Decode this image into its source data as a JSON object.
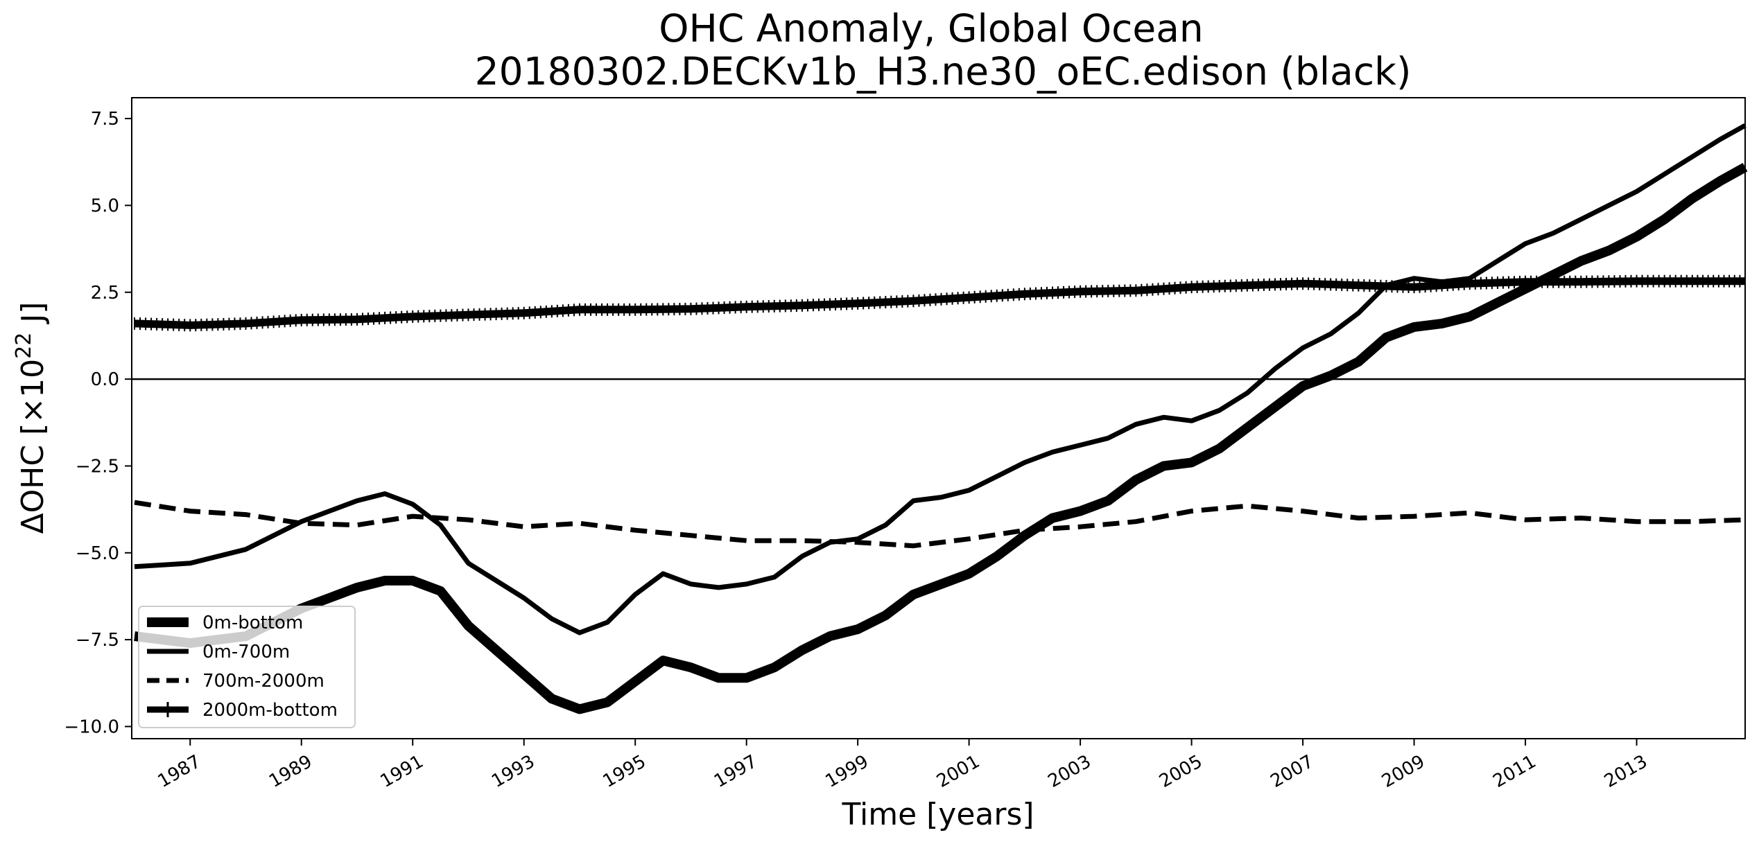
{
  "chart_data": {
    "type": "line",
    "title": "OHC Anomaly, Global Ocean",
    "subtitle": "20180302.DECKv1b_H3.ne30_oEC.edison (black)",
    "xlabel": "Time [years]",
    "ylabel_prefix": "ΔOHC [×10",
    "ylabel_exponent": "22",
    "ylabel_suffix": " J]",
    "xlim": [
      1985.95,
      2014.95
    ],
    "ylim": [
      -10.35,
      8.1
    ],
    "yticks": [
      7.5,
      5.0,
      2.5,
      0.0,
      -2.5,
      -5.0,
      -7.5,
      -10.0
    ],
    "ytick_labels": [
      "7.5",
      "5.0",
      "2.5",
      "0.0",
      "−2.5",
      "−5.0",
      "−7.5",
      "−10.0"
    ],
    "xticks": [
      1987,
      1989,
      1991,
      1993,
      1995,
      1997,
      1999,
      2001,
      2003,
      2005,
      2007,
      2009,
      2011,
      2013
    ],
    "xtick_labels": [
      "1987",
      "1989",
      "1991",
      "1993",
      "1995",
      "1997",
      "1999",
      "2001",
      "2003",
      "2005",
      "2007",
      "2009",
      "2011",
      "2013"
    ],
    "zero_line": 0.0,
    "legend_position": "lower-left",
    "series": [
      {
        "name": "0m-bottom",
        "style": "thick-solid",
        "x": [
          1986.0,
          1987.0,
          1988.0,
          1989.0,
          1989.5,
          1990.0,
          1990.5,
          1991.0,
          1991.5,
          1992.0,
          1992.5,
          1993.0,
          1993.5,
          1994.0,
          1994.5,
          1995.0,
          1995.5,
          1996.0,
          1996.5,
          1997.0,
          1997.5,
          1998.0,
          1998.5,
          1999.0,
          1999.5,
          2000.0,
          2000.5,
          2001.0,
          2001.5,
          2002.0,
          2002.5,
          2003.0,
          2003.5,
          2004.0,
          2004.5,
          2005.0,
          2005.5,
          2006.0,
          2006.5,
          2007.0,
          2007.5,
          2008.0,
          2008.5,
          2009.0,
          2009.5,
          2010.0,
          2010.5,
          2011.0,
          2011.5,
          2012.0,
          2012.5,
          2013.0,
          2013.5,
          2014.0,
          2014.5,
          2014.95
        ],
        "values": [
          -7.4,
          -7.6,
          -7.4,
          -6.6,
          -6.3,
          -6.0,
          -5.8,
          -5.8,
          -6.1,
          -7.1,
          -7.8,
          -8.5,
          -9.2,
          -9.5,
          -9.3,
          -8.7,
          -8.1,
          -8.3,
          -8.6,
          -8.6,
          -8.3,
          -7.8,
          -7.4,
          -7.2,
          -6.8,
          -6.2,
          -5.9,
          -5.6,
          -5.1,
          -4.5,
          -4.0,
          -3.8,
          -3.5,
          -2.9,
          -2.5,
          -2.4,
          -2.0,
          -1.4,
          -0.8,
          -0.2,
          0.1,
          0.5,
          1.2,
          1.5,
          1.6,
          1.8,
          2.2,
          2.6,
          3.0,
          3.4,
          3.7,
          4.1,
          4.6,
          5.2,
          5.7,
          6.1
        ]
      },
      {
        "name": "0m-700m",
        "style": "solid",
        "x": [
          1986.0,
          1987.0,
          1988.0,
          1989.0,
          1989.5,
          1990.0,
          1990.5,
          1991.0,
          1991.5,
          1992.0,
          1992.5,
          1993.0,
          1993.5,
          1994.0,
          1994.5,
          1995.0,
          1995.5,
          1996.0,
          1996.5,
          1997.0,
          1997.5,
          1998.0,
          1998.5,
          1999.0,
          1999.5,
          2000.0,
          2000.5,
          2001.0,
          2001.5,
          2002.0,
          2002.5,
          2003.0,
          2003.5,
          2004.0,
          2004.5,
          2005.0,
          2005.5,
          2006.0,
          2006.5,
          2007.0,
          2007.5,
          2008.0,
          2008.5,
          2009.0,
          2009.5,
          2010.0,
          2010.5,
          2011.0,
          2011.5,
          2012.0,
          2012.5,
          2013.0,
          2013.5,
          2014.0,
          2014.5,
          2014.95
        ],
        "values": [
          -5.4,
          -5.3,
          -4.9,
          -4.1,
          -3.8,
          -3.5,
          -3.3,
          -3.6,
          -4.2,
          -5.3,
          -5.8,
          -6.3,
          -6.9,
          -7.3,
          -7.0,
          -6.2,
          -5.6,
          -5.9,
          -6.0,
          -5.9,
          -5.7,
          -5.1,
          -4.7,
          -4.6,
          -4.2,
          -3.5,
          -3.4,
          -3.2,
          -2.8,
          -2.4,
          -2.1,
          -1.9,
          -1.7,
          -1.3,
          -1.1,
          -1.2,
          -0.9,
          -0.4,
          0.3,
          0.9,
          1.3,
          1.9,
          2.7,
          2.9,
          2.8,
          2.9,
          3.4,
          3.9,
          4.2,
          4.6,
          5.0,
          5.4,
          5.9,
          6.4,
          6.9,
          7.3
        ]
      },
      {
        "name": "700m-2000m",
        "style": "dashed",
        "x": [
          1986.0,
          1987.0,
          1988.0,
          1989.0,
          1990.0,
          1991.0,
          1992.0,
          1993.0,
          1994.0,
          1995.0,
          1996.0,
          1997.0,
          1998.0,
          1999.0,
          2000.0,
          2001.0,
          2002.0,
          2003.0,
          2004.0,
          2005.0,
          2006.0,
          2007.0,
          2008.0,
          2009.0,
          2010.0,
          2011.0,
          2012.0,
          2013.0,
          2014.0,
          2014.95
        ],
        "values": [
          -3.55,
          -3.8,
          -3.9,
          -4.15,
          -4.2,
          -3.95,
          -4.05,
          -4.25,
          -4.15,
          -4.35,
          -4.5,
          -4.65,
          -4.65,
          -4.7,
          -4.8,
          -4.6,
          -4.35,
          -4.25,
          -4.1,
          -3.8,
          -3.65,
          -3.8,
          -4.0,
          -3.95,
          -3.85,
          -4.05,
          -4.0,
          -4.1,
          -4.1,
          -4.05
        ]
      },
      {
        "name": "2000m-bottom",
        "style": "thick-marked",
        "x": [
          1986.0,
          1987.0,
          1988.0,
          1989.0,
          1990.0,
          1991.0,
          1992.0,
          1993.0,
          1994.0,
          1995.0,
          1996.0,
          1997.0,
          1998.0,
          1999.0,
          2000.0,
          2001.0,
          2002.0,
          2003.0,
          2004.0,
          2005.0,
          2006.0,
          2007.0,
          2008.0,
          2009.0,
          2010.0,
          2011.0,
          2012.0,
          2013.0,
          2014.0,
          2014.95
        ],
        "values": [
          1.6,
          1.55,
          1.6,
          1.7,
          1.72,
          1.8,
          1.85,
          1.9,
          2.0,
          2.0,
          2.02,
          2.08,
          2.12,
          2.18,
          2.25,
          2.35,
          2.45,
          2.52,
          2.55,
          2.65,
          2.7,
          2.75,
          2.7,
          2.65,
          2.75,
          2.8,
          2.8,
          2.82,
          2.82,
          2.82
        ]
      }
    ]
  }
}
